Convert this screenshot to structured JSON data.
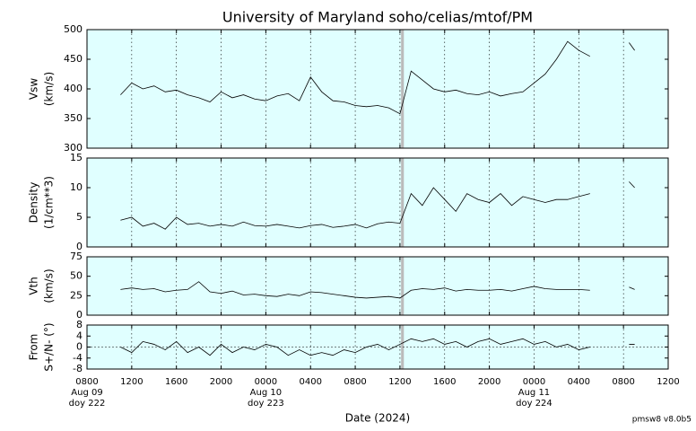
{
  "title": "University of Maryland  soho/celias/mtof/PM",
  "xlabel": "Date (2024)",
  "note": "pmsw8 v8.0b5",
  "highlight_x": [
    28.1,
    28.35
  ],
  "chart_data": [
    {
      "type": "line",
      "ylabel": [
        "Vsw",
        "(km/s)"
      ],
      "ylim": [
        300,
        500
      ],
      "yticks": [
        300,
        350,
        400,
        450,
        500
      ],
      "color": "#000000",
      "background": "#e0ffff",
      "values": [
        390,
        410,
        400,
        405,
        395,
        398,
        390,
        385,
        378,
        395,
        385,
        390,
        383,
        380,
        388,
        392,
        380,
        420,
        395,
        380,
        378,
        372,
        370,
        372,
        368,
        358,
        430,
        415,
        400,
        395,
        398,
        392,
        390,
        395,
        388,
        392,
        395,
        410,
        425,
        450,
        480,
        465,
        455,
        null,
        478,
        465
      ]
    },
    {
      "type": "line",
      "ylabel": [
        "Density",
        "(1/cm**3)"
      ],
      "ylim": [
        0,
        15
      ],
      "yticks": [
        0,
        5,
        10,
        15
      ],
      "color": "#000000",
      "background": "#e0ffff",
      "values": [
        4.5,
        5,
        3.5,
        4,
        3,
        5,
        3.8,
        4,
        3.5,
        3.8,
        3.5,
        4.2,
        3.6,
        3.5,
        3.8,
        3.5,
        3.2,
        3.6,
        3.8,
        3.3,
        3.5,
        3.8,
        3.2,
        3.9,
        4.2,
        4,
        9,
        7,
        10,
        8,
        6,
        9,
        8,
        7.5,
        9,
        7,
        8.5,
        8,
        7.5,
        8,
        8,
        8.5,
        9,
        null,
        11,
        10
      ]
    },
    {
      "type": "line",
      "ylabel": [
        "Vth",
        "(km/s)"
      ],
      "ylim": [
        0,
        75
      ],
      "yticks": [
        0,
        25,
        50,
        75
      ],
      "color": "#000000",
      "background": "#e0ffff",
      "values": [
        33,
        35,
        33,
        34,
        30,
        32,
        33,
        43,
        30,
        28,
        31,
        26,
        27,
        25,
        24,
        27,
        25,
        30,
        29,
        27,
        25,
        23,
        22,
        23,
        24,
        22,
        32,
        34,
        33,
        35,
        31,
        33,
        32,
        32,
        33,
        31,
        34,
        37,
        34,
        33,
        33,
        33,
        32,
        null,
        36,
        33
      ]
    },
    {
      "type": "line",
      "ylabel": [
        "From",
        "S+/N- (°)"
      ],
      "ylim": [
        -8,
        8
      ],
      "yticks": [
        -8,
        -4,
        0,
        4,
        8
      ],
      "color": "#000000",
      "background": "#e0ffff",
      "values": [
        0,
        -2,
        2,
        1,
        -1,
        2,
        -2,
        0,
        -3,
        1,
        -2,
        0,
        -1,
        1,
        0,
        -3,
        -1,
        -3,
        -2,
        -3,
        -1,
        -2,
        0,
        1,
        -1,
        1,
        3,
        2,
        3,
        1,
        2,
        0,
        2,
        3,
        1,
        2,
        3,
        1,
        2,
        0,
        1,
        -1,
        0,
        null,
        1,
        1
      ],
      "x": [
        3,
        4,
        5,
        6,
        7,
        8,
        9,
        10,
        11,
        12,
        13,
        14,
        15,
        16,
        17,
        18,
        19,
        20,
        21,
        22,
        23,
        24,
        25,
        26,
        27,
        28,
        29,
        30,
        31,
        32,
        33,
        34,
        35,
        36,
        37,
        38,
        39,
        40,
        41,
        42,
        43,
        44,
        45,
        47,
        48.5,
        49
      ],
      "xlim": [
        0,
        52
      ],
      "xticks": [
        {
          "value": 0,
          "label": [
            "0800",
            "Aug 09",
            "doy 222"
          ]
        },
        {
          "value": 4,
          "label": [
            "1200"
          ]
        },
        {
          "value": 8,
          "label": [
            "1600"
          ]
        },
        {
          "value": 12,
          "label": [
            "2000"
          ]
        },
        {
          "value": 16,
          "label": [
            "0000",
            "Aug 10",
            "doy 223"
          ]
        },
        {
          "value": 20,
          "label": [
            "0400"
          ]
        },
        {
          "value": 24,
          "label": [
            "0800"
          ]
        },
        {
          "value": 28,
          "label": [
            "1200"
          ]
        },
        {
          "value": 32,
          "label": [
            "1600"
          ]
        },
        {
          "value": 36,
          "label": [
            "2000"
          ]
        },
        {
          "value": 40,
          "label": [
            "0000",
            "Aug 11",
            "doy 224"
          ]
        },
        {
          "value": 44,
          "label": [
            "0400"
          ]
        },
        {
          "value": 48,
          "label": [
            "0800"
          ]
        },
        {
          "value": 52,
          "label": [
            "1200"
          ]
        }
      ]
    }
  ]
}
